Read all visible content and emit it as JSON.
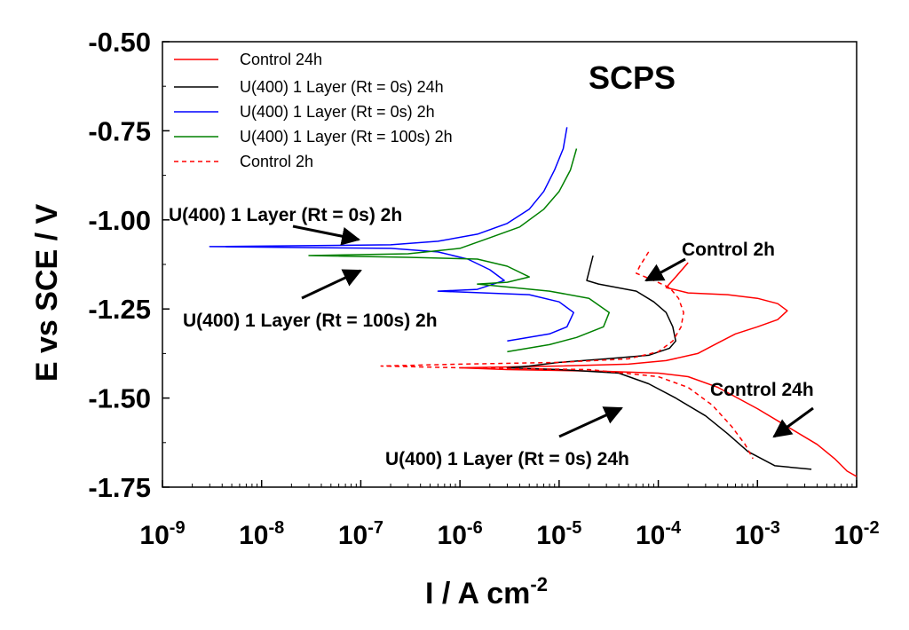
{
  "chart_data": {
    "type": "line",
    "title": "SCPS",
    "xlabel": "I / A cm",
    "xlabel_sup": "-2",
    "ylabel": "E vs SCE / V",
    "x_scale": "log",
    "xlim": [
      1e-09,
      0.01
    ],
    "ylim": [
      -1.75,
      -0.5
    ],
    "x_ticks": [
      {
        "value": 1e-09,
        "base": "10",
        "exp": "-9"
      },
      {
        "value": 1e-08,
        "base": "10",
        "exp": "-8"
      },
      {
        "value": 1e-07,
        "base": "10",
        "exp": "-7"
      },
      {
        "value": 1e-06,
        "base": "10",
        "exp": "-6"
      },
      {
        "value": 1e-05,
        "base": "10",
        "exp": "-5"
      },
      {
        "value": 0.0001,
        "base": "10",
        "exp": "-4"
      },
      {
        "value": 0.001,
        "base": "10",
        "exp": "-3"
      },
      {
        "value": 0.01,
        "base": "10",
        "exp": "-2"
      }
    ],
    "y_ticks": [
      {
        "value": -0.5,
        "label": "-0.50"
      },
      {
        "value": -0.75,
        "label": "-0.75"
      },
      {
        "value": -1.0,
        "label": "-1.00"
      },
      {
        "value": -1.25,
        "label": "-1.25"
      },
      {
        "value": -1.5,
        "label": "-1.50"
      },
      {
        "value": -1.75,
        "label": "-1.75"
      }
    ],
    "grid": false,
    "legend_position": "top-left",
    "series": [
      {
        "name": "Control 24h",
        "color": "#ff0000",
        "dash": "solid",
        "points": [
          [
            0.0002,
            -1.12
          ],
          [
            0.00015,
            -1.16
          ],
          [
            0.00012,
            -1.19
          ],
          [
            0.0002,
            -1.205
          ],
          [
            0.0005,
            -1.21
          ],
          [
            0.001,
            -1.22
          ],
          [
            0.0016,
            -1.235
          ],
          [
            0.002,
            -1.255
          ],
          [
            0.0016,
            -1.28
          ],
          [
            0.001,
            -1.3
          ],
          [
            0.0006,
            -1.32
          ],
          [
            0.0004,
            -1.345
          ],
          [
            0.00025,
            -1.375
          ],
          [
            0.00012,
            -1.395
          ],
          [
            5e-05,
            -1.405
          ],
          [
            1e-05,
            -1.41
          ],
          [
            1e-06,
            -1.415
          ],
          [
            3e-06,
            -1.42
          ],
          [
            3e-05,
            -1.425
          ],
          [
            0.0001,
            -1.43
          ],
          [
            0.0002,
            -1.44
          ],
          [
            0.0004,
            -1.47
          ],
          [
            0.001,
            -1.53
          ],
          [
            0.002,
            -1.58
          ],
          [
            0.004,
            -1.63
          ],
          [
            0.006,
            -1.67
          ],
          [
            0.008,
            -1.705
          ],
          [
            0.01,
            -1.72
          ]
        ]
      },
      {
        "name": "U(400) 1 Layer (Rt = 0s) 24h",
        "color": "#000000",
        "dash": "solid",
        "points": [
          [
            2.2e-05,
            -1.1
          ],
          [
            1.9e-05,
            -1.17
          ],
          [
            2.5e-05,
            -1.18
          ],
          [
            6e-05,
            -1.2
          ],
          [
            9e-05,
            -1.23
          ],
          [
            0.00012,
            -1.26
          ],
          [
            0.00014,
            -1.3
          ],
          [
            0.00015,
            -1.34
          ],
          [
            0.00013,
            -1.36
          ],
          [
            8e-05,
            -1.38
          ],
          [
            3e-05,
            -1.39
          ],
          [
            1e-05,
            -1.4
          ],
          [
            5e-06,
            -1.41
          ],
          [
            3e-06,
            -1.415
          ],
          [
            1e-05,
            -1.42
          ],
          [
            4e-05,
            -1.43
          ],
          [
            8e-05,
            -1.46
          ],
          [
            0.00015,
            -1.5
          ],
          [
            0.0003,
            -1.55
          ],
          [
            0.0005,
            -1.6
          ],
          [
            0.0008,
            -1.65
          ],
          [
            0.0015,
            -1.69
          ],
          [
            0.0035,
            -1.7
          ]
        ]
      },
      {
        "name": "U(400) 1 Layer (Rt = 0s) 2h",
        "color": "#0000ff",
        "dash": "solid",
        "points": [
          [
            1.2e-05,
            -0.74
          ],
          [
            1.1e-05,
            -0.8
          ],
          [
            9e-06,
            -0.86
          ],
          [
            7e-06,
            -0.92
          ],
          [
            5e-06,
            -0.97
          ],
          [
            3e-06,
            -1.01
          ],
          [
            1.5e-06,
            -1.04
          ],
          [
            6e-07,
            -1.06
          ],
          [
            2e-07,
            -1.07
          ],
          [
            3e-09,
            -1.075
          ],
          [
            2e-07,
            -1.08
          ],
          [
            6e-07,
            -1.09
          ],
          [
            1.2e-06,
            -1.11
          ],
          [
            2e-06,
            -1.14
          ],
          [
            2.8e-06,
            -1.17
          ],
          [
            1.5e-06,
            -1.195
          ],
          [
            6e-07,
            -1.2
          ],
          [
            5e-06,
            -1.21
          ],
          [
            1e-05,
            -1.23
          ],
          [
            1.4e-05,
            -1.26
          ],
          [
            1.2e-05,
            -1.3
          ],
          [
            8e-06,
            -1.32
          ],
          [
            3e-06,
            -1.34
          ]
        ]
      },
      {
        "name": "U(400) 1 Layer (Rt = 100s) 2h",
        "color": "#008000",
        "dash": "solid",
        "points": [
          [
            1.5e-05,
            -0.8
          ],
          [
            1.3e-05,
            -0.86
          ],
          [
            1e-05,
            -0.92
          ],
          [
            7e-06,
            -0.97
          ],
          [
            4e-06,
            -1.02
          ],
          [
            2e-06,
            -1.05
          ],
          [
            1e-06,
            -1.08
          ],
          [
            3e-07,
            -1.095
          ],
          [
            3e-08,
            -1.1
          ],
          [
            3e-07,
            -1.105
          ],
          [
            1.5e-06,
            -1.11
          ],
          [
            3e-06,
            -1.13
          ],
          [
            5e-06,
            -1.16
          ],
          [
            3e-06,
            -1.175
          ],
          [
            1.5e-06,
            -1.18
          ],
          [
            8e-06,
            -1.2
          ],
          [
            2e-05,
            -1.22
          ],
          [
            3.2e-05,
            -1.26
          ],
          [
            2.8e-05,
            -1.3
          ],
          [
            1.5e-05,
            -1.33
          ],
          [
            8e-06,
            -1.35
          ],
          [
            3e-06,
            -1.37
          ]
        ]
      },
      {
        "name": "Control 2h",
        "color": "#ff0000",
        "dash": "dashed",
        "points": [
          [
            8e-05,
            -1.09
          ],
          [
            6.5e-05,
            -1.13
          ],
          [
            6e-05,
            -1.15
          ],
          [
            9e-05,
            -1.17
          ],
          [
            0.00013,
            -1.19
          ],
          [
            0.00016,
            -1.22
          ],
          [
            0.00018,
            -1.26
          ],
          [
            0.00017,
            -1.3
          ],
          [
            0.00014,
            -1.34
          ],
          [
            0.0001,
            -1.37
          ],
          [
            5e-05,
            -1.39
          ],
          [
            1e-05,
            -1.4
          ],
          [
            1e-06,
            -1.405
          ],
          [
            1.6e-07,
            -1.41
          ],
          [
            1e-06,
            -1.415
          ],
          [
            2e-05,
            -1.42
          ],
          [
            0.0001,
            -1.44
          ],
          [
            0.0002,
            -1.47
          ],
          [
            0.00035,
            -1.52
          ],
          [
            0.00055,
            -1.58
          ],
          [
            0.00075,
            -1.63
          ],
          [
            0.0009,
            -1.67
          ]
        ]
      }
    ],
    "annotations": [
      {
        "text": "U(400) 1 Layer (Rt = 0s) 2h",
        "arrow_to": [
          1e-07,
          -1.06
        ]
      },
      {
        "text": "U(400) 1 Layer (Rt = 100s) 2h",
        "arrow_to": [
          1e-07,
          -1.13
        ]
      },
      {
        "text": "Control 2h",
        "arrow_to": [
          7e-05,
          -1.155
        ]
      },
      {
        "text": "Control 24h",
        "arrow_to": [
          0.0014,
          -1.59
        ]
      },
      {
        "text": "U(400) 1 Layer (Rt = 0s) 24h",
        "arrow_to": [
          5e-05,
          -1.5
        ]
      }
    ]
  }
}
